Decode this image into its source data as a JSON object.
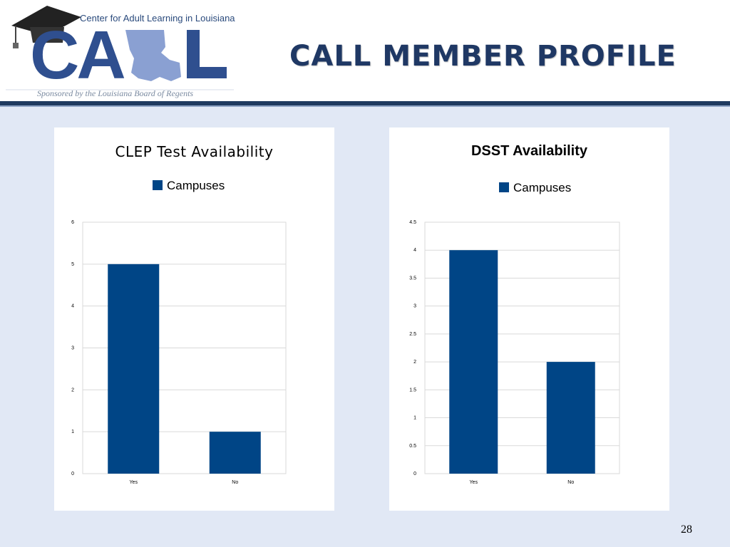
{
  "header": {
    "logo_banner": "Center for Adult Learning in Louisiana",
    "logo_text": "CALL",
    "sponsor": "Sponsored by the Louisiana Board of Regents",
    "title": "CALL MEMBER PROFILE"
  },
  "page_number": "28",
  "colors": {
    "bar": "#004586",
    "title": "#1f3864",
    "background": "#e1e8f5"
  },
  "chart_data": [
    {
      "type": "bar",
      "title": "CLEP Test Availability",
      "categories": [
        "Yes",
        "No"
      ],
      "series": [
        {
          "name": "Campuses",
          "values": [
            5,
            1
          ]
        }
      ],
      "ylim": [
        0,
        6
      ],
      "yticks": [
        "0",
        "1",
        "2",
        "3",
        "4",
        "5",
        "6"
      ],
      "xlabel": "",
      "ylabel": "",
      "grid": true,
      "legend": "top"
    },
    {
      "type": "bar",
      "title": "DSST Availability",
      "categories": [
        "Yes",
        "No"
      ],
      "series": [
        {
          "name": "Campuses",
          "values": [
            4,
            2
          ]
        }
      ],
      "ylim": [
        0,
        4.5
      ],
      "yticks": [
        "0",
        "0.5",
        "1",
        "1.5",
        "2",
        "2.5",
        "3",
        "3.5",
        "4",
        "4.5"
      ],
      "xlabel": "",
      "ylabel": "",
      "grid": true,
      "legend": "top"
    }
  ]
}
